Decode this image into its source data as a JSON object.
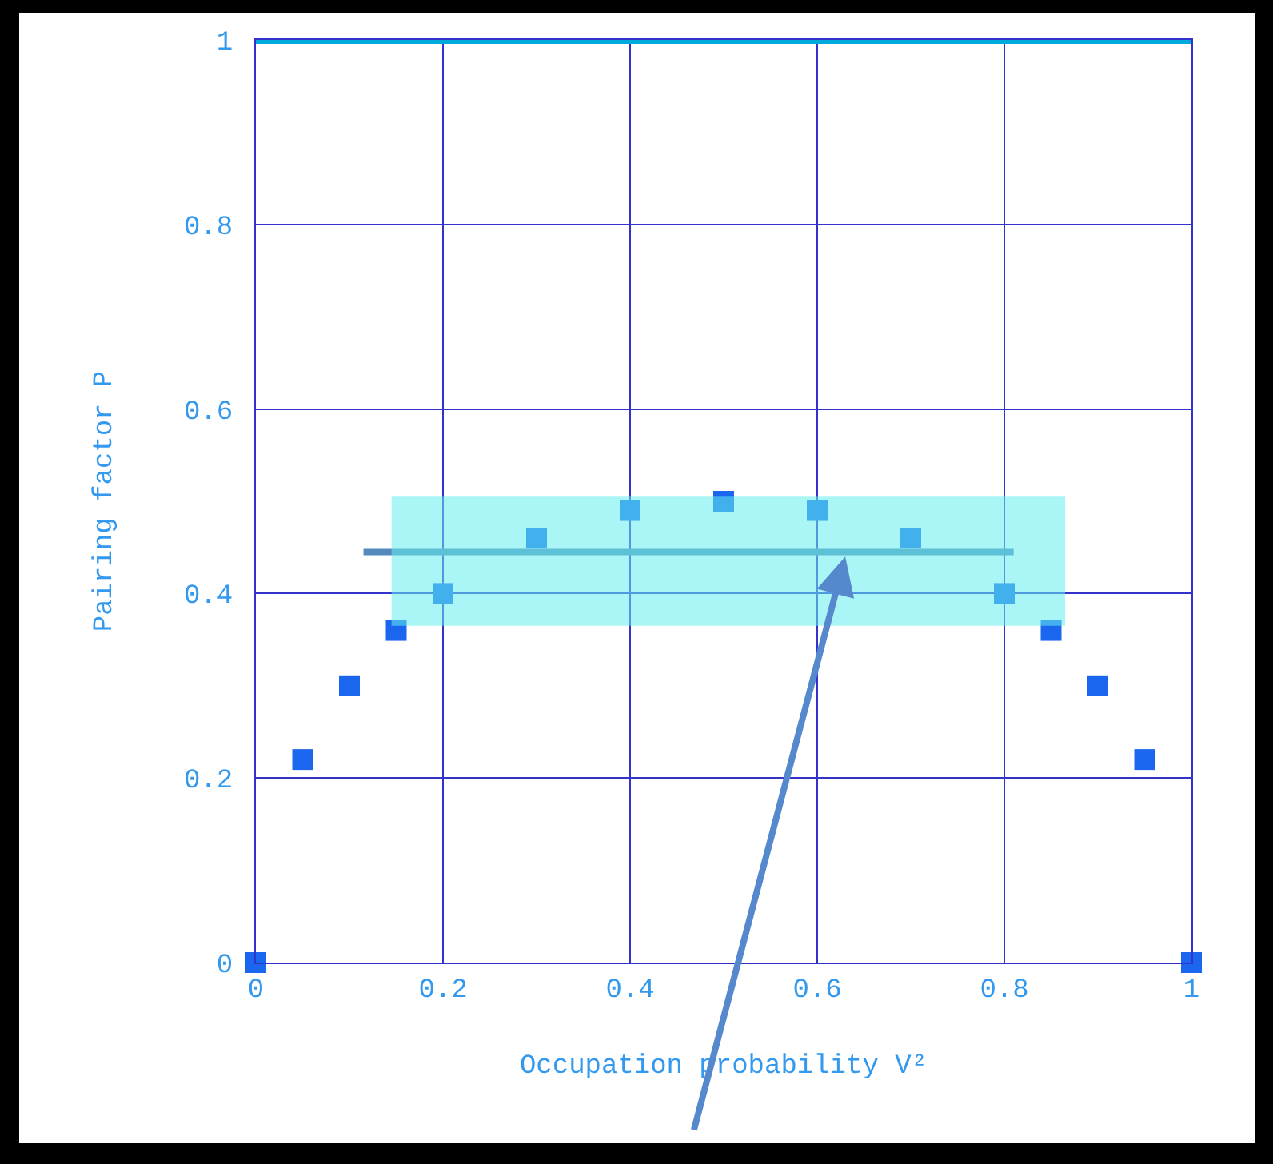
{
  "chart_data": {
    "type": "scatter",
    "xlabel": "Occupation probability V²",
    "ylabel": "Pairing factor P",
    "xlim": [
      0,
      1
    ],
    "xticks": [
      0,
      0.2,
      0.4,
      0.6,
      0.8,
      1
    ],
    "ylim": [
      0,
      1
    ],
    "yticks": [
      0,
      0.2,
      0.4,
      0.6,
      0.8,
      1
    ],
    "grid": true,
    "legend": false,
    "marker": "square",
    "series": [
      {
        "color": "#1a66ee",
        "x": [
          0,
          0.05,
          0.1,
          0.15,
          0.2,
          0.3,
          0.4,
          0.5,
          0.6,
          0.7,
          0.8,
          0.85,
          0.9,
          0.95,
          1
        ],
        "values": [
          0,
          0.22,
          0.3,
          0.36,
          0.4,
          0.46,
          0.49,
          0.5,
          0.49,
          0.46,
          0.4,
          0.36,
          0.3,
          0.22,
          0
        ]
      },
      {
        "type": "line",
        "color": "#5588bb",
        "marker": "none",
        "x": [
          0.115,
          0.81
        ],
        "values": [
          0.445,
          0.445
        ]
      },
      {
        "type": "line",
        "color": "#66eeee",
        "marker": "none",
        "x": [
          0.145,
          0.865
        ],
        "values": [
          null,
          null
        ],
        "lower": [
          0.365,
          0.365
        ],
        "upper": [
          0.505,
          0.505
        ]
      }
    ],
    "ref_lines": [
      {
        "axis": "y",
        "value": 1,
        "color": "#00aadd"
      }
    ]
  }
}
